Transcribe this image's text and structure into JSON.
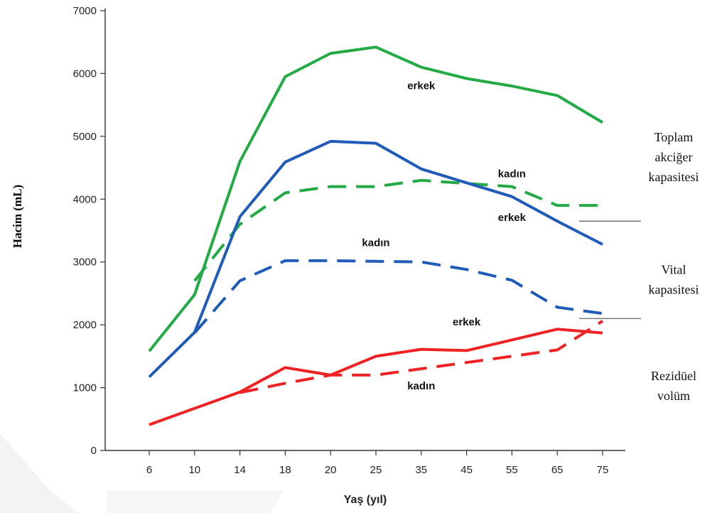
{
  "chart_data": {
    "type": "line",
    "xlabel": "Yaş (yıl)",
    "ylabel": "Hacim (mL)",
    "categories": [
      "6",
      "10",
      "14",
      "18",
      "20",
      "25",
      "35",
      "45",
      "55",
      "65",
      "75"
    ],
    "yticks": [
      0,
      1000,
      2000,
      3000,
      4000,
      5000,
      6000,
      7000
    ],
    "ylim": [
      0,
      7000
    ],
    "grid": false,
    "series": [
      {
        "color": "#22aa44",
        "dash": false,
        "values": [
          1580,
          2480,
          4600,
          5950,
          6320,
          6420,
          6100,
          5920,
          5800,
          5650,
          5220
        ]
      },
      {
        "color": "#22aa44",
        "dash": true,
        "values": [
          null,
          2700,
          3600,
          4100,
          4200,
          4200,
          4300,
          4250,
          4200,
          3900,
          3900
        ]
      },
      {
        "color": "#1f5bb8",
        "dash": false,
        "values": [
          1170,
          1880,
          3720,
          4590,
          4920,
          4890,
          4480,
          4260,
          4040,
          3650,
          3280
        ]
      },
      {
        "color": "#1f5bb8",
        "dash": true,
        "values": [
          null,
          1870,
          2700,
          3020,
          3020,
          3010,
          3000,
          2880,
          2710,
          2280,
          2180
        ]
      },
      {
        "color": "#ee2222",
        "dash": false,
        "values": [
          410,
          670,
          930,
          1320,
          1200,
          1500,
          1610,
          1590,
          1760,
          1930,
          1870
        ]
      },
      {
        "color": "#ee2222",
        "dash": true,
        "values": [
          null,
          null,
          920,
          1070,
          1200,
          1200,
          1300,
          1400,
          1500,
          1600,
          2060
        ]
      }
    ],
    "annotations": [
      {
        "text": "erkek",
        "x": "35",
        "y": 5750
      },
      {
        "text": "kadın",
        "x": "55",
        "y": 4350
      },
      {
        "text": "erkek",
        "x": "55",
        "y": 3650
      },
      {
        "text": "kadın",
        "x": "25",
        "y": 3250
      },
      {
        "text": "erkek",
        "x": "45",
        "y": 1990
      },
      {
        "text": "kadın",
        "x": "35",
        "y": 970
      }
    ],
    "side_labels": [
      {
        "lines": [
          "Toplam",
          "akciğer",
          "kapasitesi"
        ]
      },
      {
        "lines": [
          "Vital",
          "kapasitesi"
        ]
      },
      {
        "lines": [
          "Rezidüel",
          "volüm"
        ]
      }
    ],
    "brackets": [
      3650,
      2100
    ]
  }
}
